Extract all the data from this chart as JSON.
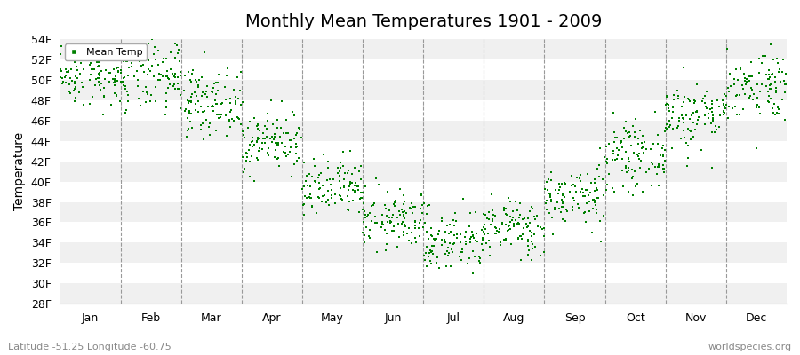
{
  "title": "Monthly Mean Temperatures 1901 - 2009",
  "ylabel": "Temperature",
  "xlabel_labels": [
    "Jan",
    "Feb",
    "Mar",
    "Apr",
    "May",
    "Jun",
    "Jul",
    "Aug",
    "Sep",
    "Oct",
    "Nov",
    "Dec"
  ],
  "subtitle": "Latitude -51.25 Longitude -60.75",
  "watermark": "worldspecies.org",
  "legend_label": "Mean Temp",
  "dot_color": "#008000",
  "background_color": "#ffffff",
  "plot_bg_color": "#ffffff",
  "band_color_light": "#f0f0f0",
  "ylim_min": 28,
  "ylim_max": 54,
  "ytick_step": 2,
  "num_years": 109,
  "monthly_means_F": [
    50.5,
    50.2,
    47.8,
    44.0,
    39.2,
    36.2,
    34.2,
    35.5,
    38.5,
    42.5,
    46.5,
    49.5
  ],
  "monthly_stds_F": [
    1.5,
    1.8,
    1.6,
    1.5,
    1.5,
    1.4,
    1.6,
    1.4,
    1.5,
    1.6,
    1.7,
    1.8
  ],
  "title_fontsize": 14,
  "axis_fontsize": 9,
  "ylabel_fontsize": 10
}
